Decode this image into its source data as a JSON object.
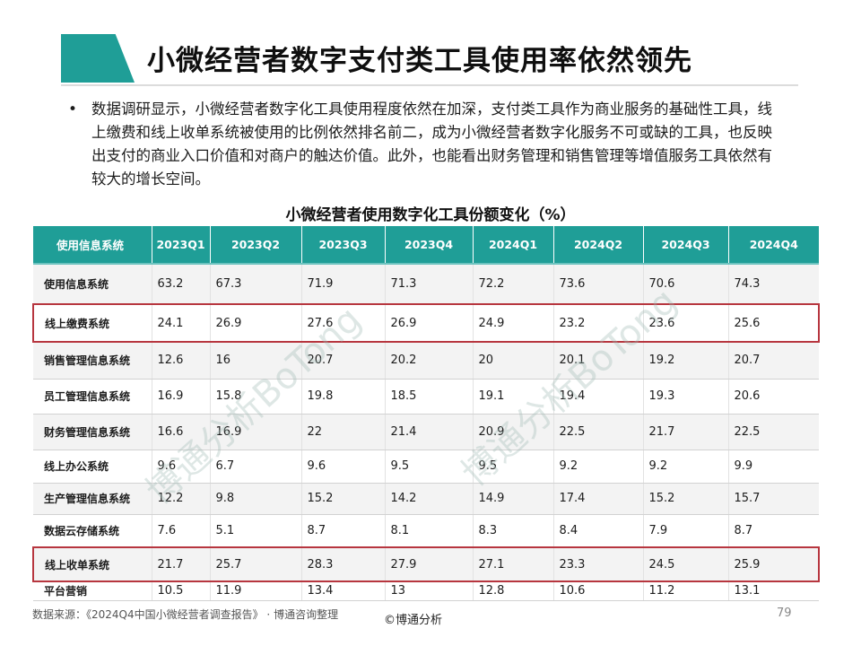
{
  "header": {
    "title": "小微经营者数字支付类工具使用率依然领先"
  },
  "summary": {
    "bullet": "•",
    "text": "数据调研显示，小微经营者数字化工具使用程度依然在加深，支付类工具作为商业服务的基础性工具，线上缴费和线上收单系统被使用的比例依然排名前二，成为小微经营者数字化服务不可或缺的工具，也反映出支付的商业入口价值和对商户的触达价值。此外，也能看出财务管理和销售管理等增值服务工具依然有较大的增长空间。"
  },
  "chart_data": {
    "type": "table",
    "title": "小微经营者使用数字化工具份额变化（%）",
    "columns": [
      "使用信息系统",
      "2023Q1",
      "2023Q2",
      "2023Q3",
      "2023Q4",
      "2024Q1",
      "2024Q2",
      "2024Q3",
      "2024Q4"
    ],
    "rows": [
      {
        "label": "使用信息系统",
        "values": [
          "63.2",
          "67.3",
          "71.9",
          "71.3",
          "72.2",
          "73.6",
          "70.6",
          "74.3"
        ],
        "highlight": false
      },
      {
        "label": "线上缴费系统",
        "values": [
          "24.1",
          "26.9",
          "27.6",
          "26.9",
          "24.9",
          "23.2",
          "23.6",
          "25.6"
        ],
        "highlight": true
      },
      {
        "label": "销售管理信息系统",
        "values": [
          "12.6",
          "16",
          "20.7",
          "20.2",
          "20",
          "20.1",
          "19.2",
          "20.7"
        ],
        "highlight": false
      },
      {
        "label": "员工管理信息系统",
        "values": [
          "16.9",
          "15.8",
          "19.8",
          "18.5",
          "19.1",
          "19.4",
          "19.3",
          "20.6"
        ],
        "highlight": false
      },
      {
        "label": "财务管理信息系统",
        "values": [
          "16.6",
          "16.9",
          "22",
          "21.4",
          "20.9",
          "22.5",
          "21.7",
          "22.5"
        ],
        "highlight": false
      },
      {
        "label": "线上办公系统",
        "values": [
          "9.6",
          "6.7",
          "9.6",
          "9.5",
          "9.5",
          "9.2",
          "9.2",
          "9.9"
        ],
        "highlight": false
      },
      {
        "label": "生产管理信息系统",
        "values": [
          "12.2",
          "9.8",
          "15.2",
          "14.2",
          "14.9",
          "17.4",
          "15.2",
          "15.7"
        ],
        "highlight": false
      },
      {
        "label": "数据云存储系统",
        "values": [
          "7.6",
          "5.1",
          "8.7",
          "8.1",
          "8.3",
          "8.4",
          "7.9",
          "8.7"
        ],
        "highlight": false
      },
      {
        "label": "线上收单系统",
        "values": [
          "21.7",
          "25.7",
          "28.3",
          "27.9",
          "27.1",
          "23.3",
          "24.5",
          "25.9"
        ],
        "highlight": true
      },
      {
        "label": "平台营销",
        "values": [
          "10.5",
          "11.9",
          "13.4",
          "13",
          "12.8",
          "10.6",
          "11.2",
          "13.1"
        ],
        "highlight": false
      }
    ]
  },
  "watermarks": [
    "博通分析BoTong",
    "博通分析BoTong"
  ],
  "footer": {
    "source": "数据来源：《2024Q4中国小微经营者调查报告》 · 博通咨询整理",
    "copyright": "©博通分析",
    "page": "79"
  },
  "colors": {
    "accent": "#1f9e97",
    "highlight_border": "#b7363f"
  }
}
